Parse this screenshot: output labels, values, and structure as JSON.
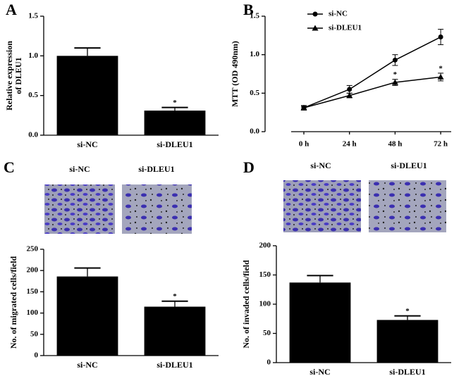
{
  "chart_data": [
    {
      "type": "bar",
      "panel": "A",
      "ylabel": [
        "Relative expression",
        "of DLEU1"
      ],
      "categories": [
        "si-NC",
        "si-DLEU1"
      ],
      "values": [
        1.0,
        0.31
      ],
      "errors": [
        0.1,
        0.04
      ],
      "significance": [
        null,
        "*"
      ],
      "color": "#000000",
      "ylim": [
        0,
        1.5
      ],
      "yticks": [
        {
          "value": 0,
          "label": "0.0"
        },
        0.5,
        {
          "value": 1,
          "label": "1.0"
        },
        1.5
      ]
    },
    {
      "type": "line",
      "panel": "B",
      "ylabel": "MTT (OD 490nm)",
      "categories": [
        "0 h",
        "24 h",
        "48 h",
        "72 h"
      ],
      "series": [
        {
          "name": "si-NC",
          "color": "#000000",
          "marker": "circle",
          "values": [
            0.31,
            0.55,
            0.93,
            1.23
          ],
          "errors": [
            0.03,
            0.05,
            0.07,
            0.1
          ],
          "significance": [
            null,
            null,
            null,
            null
          ]
        },
        {
          "name": "si-DLEU1",
          "color": "#000000",
          "marker": "triangle",
          "values": [
            0.31,
            0.47,
            0.64,
            0.71
          ],
          "errors": [
            0.02,
            0.03,
            0.04,
            0.05
          ],
          "significance": [
            null,
            null,
            "*",
            "*"
          ]
        }
      ],
      "ylim": [
        0,
        1.5
      ],
      "yticks": [
        {
          "value": 0,
          "label": "0.0"
        },
        0.5,
        {
          "value": 1,
          "label": "1.0"
        },
        1.5
      ],
      "legend": "top-left"
    },
    {
      "type": "bar",
      "panel": "C",
      "image_labels": [
        "si-NC",
        "si-DLEU1"
      ],
      "ylabel": "No. of migrated cells/field",
      "categories": [
        "si-NC",
        "si-DLEU1"
      ],
      "values": [
        186,
        115
      ],
      "errors": [
        20,
        13
      ],
      "significance": [
        null,
        "*"
      ],
      "color": "#000000",
      "ylim": [
        0,
        250
      ],
      "yticks": [
        0,
        50,
        100,
        150,
        200,
        250
      ]
    },
    {
      "type": "bar",
      "panel": "D",
      "image_labels": [
        "si-NC",
        "si-DLEU1"
      ],
      "ylabel": "No. of invaded cells/field",
      "categories": [
        "si-NC",
        "si-DLEU1"
      ],
      "values": [
        137,
        73
      ],
      "errors": [
        12,
        7
      ],
      "significance": [
        null,
        "*"
      ],
      "color": "#000000",
      "ylim": [
        0,
        200
      ],
      "yticks": [
        0,
        50,
        100,
        150,
        200
      ]
    }
  ]
}
